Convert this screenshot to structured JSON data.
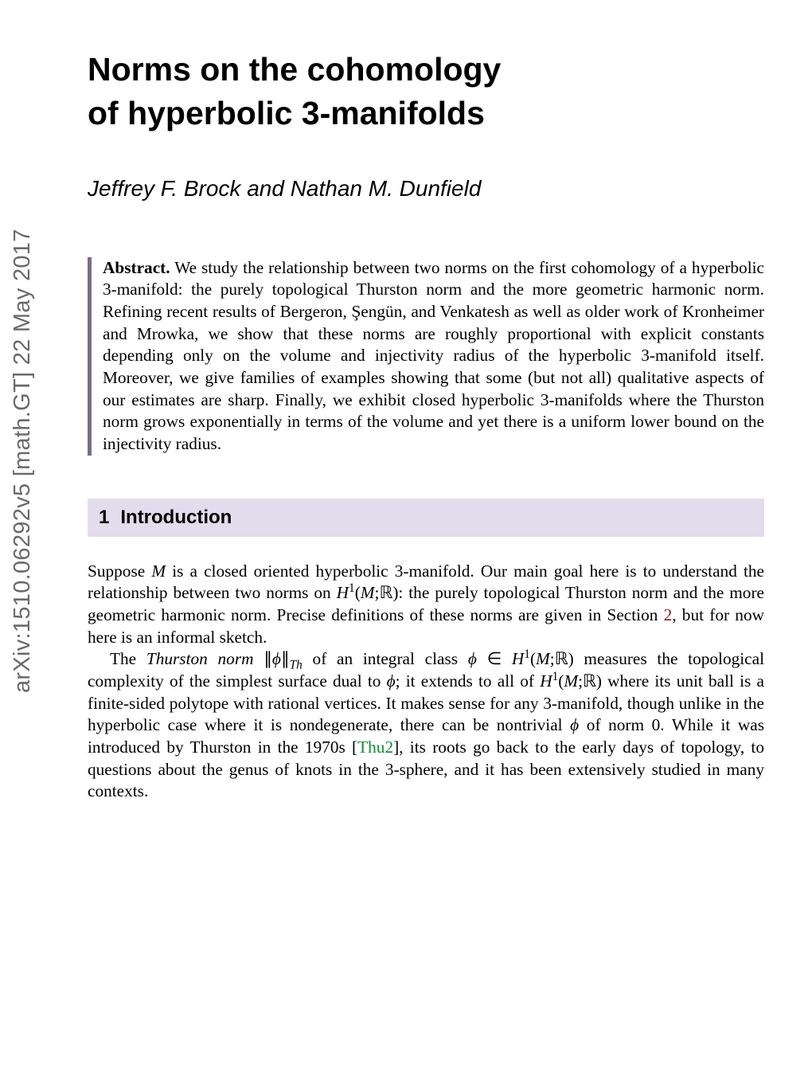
{
  "arxiv": {
    "id": "arXiv:1510.06292v5  [math.GT]  22 May 2017"
  },
  "title": {
    "line1": "Norms on the cohomology",
    "line2": "of hyperbolic 3-manifolds"
  },
  "authors": "Jeffrey F. Brock and Nathan M. Dunfield",
  "abstract": {
    "label": "Abstract.",
    "text": "We study the relationship between two norms on the first cohomology of a hyperbolic 3-manifold: the purely topological Thurston norm and the more geometric harmonic norm. Refining recent results of Bergeron, Şengün, and Venkatesh as well as older work of Kronheimer and Mrowka, we show that these norms are roughly proportional with explicit constants depending only on the volume and injectivity radius of the hyperbolic 3-manifold itself. Moreover, we give families of examples showing that some (but not all) qualitative aspects of our estimates are sharp. Finally, we exhibit closed hyperbolic 3-manifolds where the Thurston norm grows exponentially in terms of the volume and yet there is a uniform lower bound on the injectivity radius."
  },
  "section": {
    "number": "1",
    "title": "Introduction"
  },
  "intro": {
    "p1_a": "Suppose ",
    "p1_M": "M",
    "p1_b": " is a closed oriented hyperbolic 3-manifold. Our main goal here is to understand the relationship between two norms on ",
    "p1_H": "H",
    "p1_sup1": "1",
    "p1_paren_open": "(",
    "p1_Mb": "M",
    "p1_semicolon": ";",
    "p1_R": "ℝ",
    "p1_paren_close": ")",
    "p1_c": ": the purely topological Thurston norm and the more geometric harmonic norm. Precise definitions of these norms are given in Section ",
    "p1_secref": "2",
    "p1_d": ", but for now here is an informal sketch.",
    "p2_a": "The ",
    "p2_term": "Thurston norm",
    "p2_b": " ",
    "p2_normopen": "∥",
    "p2_phi1": "ϕ",
    "p2_normclose": "∥",
    "p2_sub": "Th",
    "p2_c": " of an integral class ",
    "p2_phi2": "ϕ",
    "p2_in": " ∈ ",
    "p2_H2": "H",
    "p2_sup2": "1",
    "p2_open2": "(",
    "p2_M2": "M",
    "p2_semi2": ";",
    "p2_R2": "ℝ",
    "p2_close2": ")",
    "p2_d": " measures the topological complexity of the simplest surface dual to ",
    "p2_phi3": "ϕ",
    "p2_e": "; it extends to all of ",
    "p2_H3": "H",
    "p2_sup3": "1",
    "p2_open3": "(",
    "p2_M3": "M",
    "p2_semi3": ";",
    "p2_R3": "ℝ",
    "p2_close3": ")",
    "p2_f": " where its unit ball is a finite-sided polytope with rational vertices. It makes sense for any 3-manifold, though unlike in the hyperbolic case where it is nondegenerate, there can be nontrivial ",
    "p2_phi4": "ϕ",
    "p2_g": " of norm 0. While it was introduced by Thurston in the 1970s [",
    "p2_cite": "Thu2",
    "p2_h": "], its roots go back to the early days of topology, to questions about the genus of knots in the 3-sphere, and it has been extensively studied in many contexts."
  },
  "colors": {
    "arxiv_text": "#6a6a6a",
    "heading_bg": "#e3dcec",
    "abstract_bar": "#776c8e",
    "cite": "#138c3a",
    "ref": "#8a1e1e"
  },
  "typography": {
    "title_fontsize": 41,
    "author_fontsize": 28,
    "body_fontsize": 21.3,
    "heading_fontsize": 24,
    "arxiv_fontsize": 29
  }
}
